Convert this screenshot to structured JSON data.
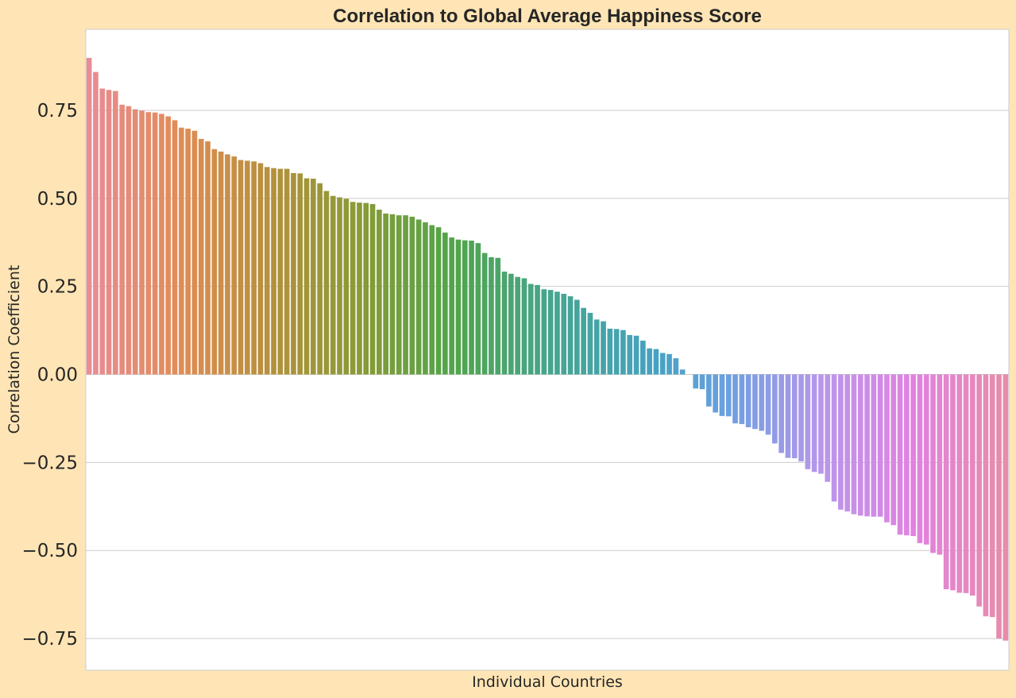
{
  "chart_data": {
    "type": "bar",
    "title": "Correlation to Global Average Happiness Score",
    "xlabel": "Individual Countries",
    "ylabel": "Correlation Coefficient",
    "ylim": [
      -0.84,
      0.98
    ],
    "yticks": [
      {
        "value": 0.75,
        "label": "0.75"
      },
      {
        "value": 0.5,
        "label": "0.50"
      },
      {
        "value": 0.25,
        "label": "0.25"
      },
      {
        "value": 0.0,
        "label": "0.00"
      },
      {
        "value": -0.25,
        "label": "−0.25"
      },
      {
        "value": -0.5,
        "label": "−0.50"
      },
      {
        "value": -0.75,
        "label": "−0.75"
      }
    ],
    "grid": "horizontal",
    "legend": "none",
    "palette": "husl gradient (pink → orange → olive → green → teal → blue → violet → magenta → pink)",
    "background": "#FFE5B5",
    "plot_background": "#FFFFFF",
    "values": [
      0.899,
      0.859,
      0.812,
      0.808,
      0.805,
      0.766,
      0.762,
      0.753,
      0.749,
      0.745,
      0.744,
      0.74,
      0.733,
      0.722,
      0.701,
      0.698,
      0.692,
      0.669,
      0.662,
      0.64,
      0.633,
      0.625,
      0.619,
      0.609,
      0.607,
      0.605,
      0.6,
      0.589,
      0.586,
      0.584,
      0.584,
      0.572,
      0.571,
      0.557,
      0.556,
      0.543,
      0.521,
      0.507,
      0.503,
      0.499,
      0.49,
      0.488,
      0.487,
      0.484,
      0.468,
      0.457,
      0.455,
      0.452,
      0.452,
      0.448,
      0.44,
      0.432,
      0.424,
      0.418,
      0.403,
      0.389,
      0.383,
      0.381,
      0.38,
      0.373,
      0.345,
      0.333,
      0.331,
      0.292,
      0.286,
      0.277,
      0.273,
      0.257,
      0.254,
      0.242,
      0.24,
      0.235,
      0.229,
      0.222,
      0.212,
      0.189,
      0.175,
      0.156,
      0.151,
      0.13,
      0.129,
      0.126,
      0.112,
      0.11,
      0.096,
      0.074,
      0.072,
      0.061,
      0.058,
      0.046,
      0.014,
      0.0,
      -0.04,
      -0.042,
      -0.091,
      -0.108,
      -0.118,
      -0.119,
      -0.139,
      -0.141,
      -0.15,
      -0.155,
      -0.16,
      -0.171,
      -0.196,
      -0.223,
      -0.237,
      -0.238,
      -0.247,
      -0.269,
      -0.277,
      -0.282,
      -0.305,
      -0.361,
      -0.384,
      -0.389,
      -0.397,
      -0.401,
      -0.403,
      -0.404,
      -0.404,
      -0.42,
      -0.428,
      -0.455,
      -0.457,
      -0.459,
      -0.479,
      -0.483,
      -0.507,
      -0.512,
      -0.61,
      -0.613,
      -0.62,
      -0.621,
      -0.628,
      -0.659,
      -0.687,
      -0.689,
      -0.75,
      -0.756
    ]
  }
}
